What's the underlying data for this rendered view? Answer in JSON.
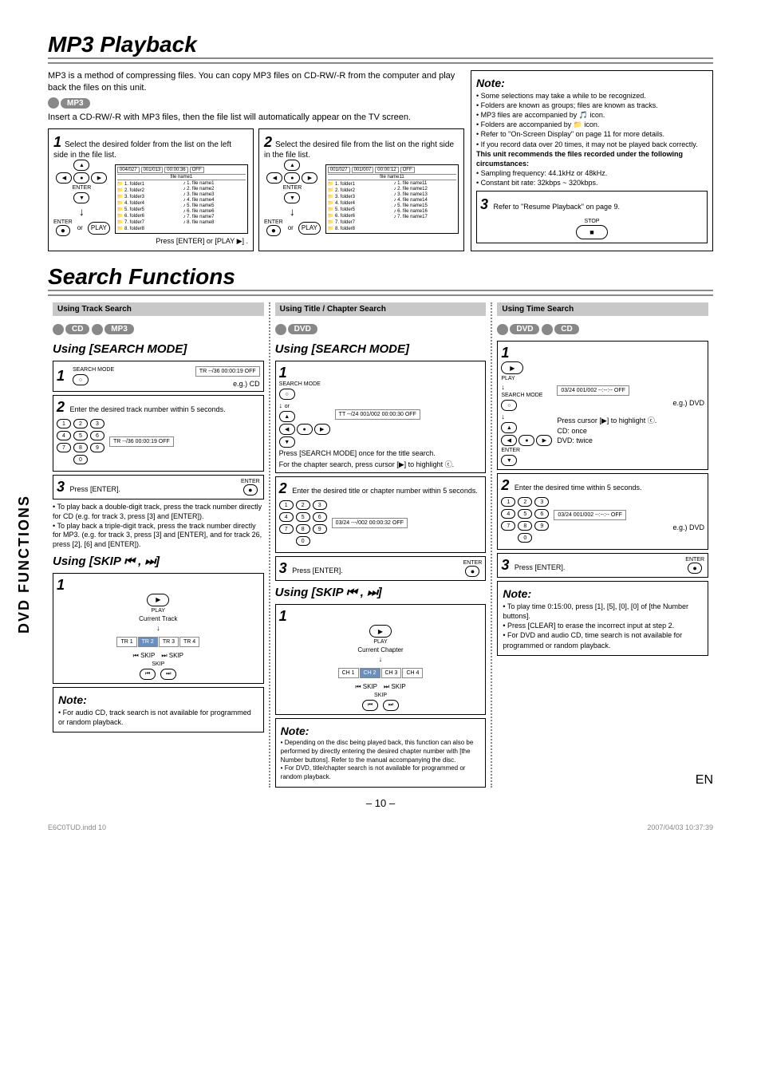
{
  "sideTab": "DVD FUNCTIONS",
  "title1": "MP3 Playback",
  "intro": "MP3 is a method of compressing files. You can copy MP3 files on CD-RW/-R from the computer and play back the files on this unit.",
  "badgeMp3": "MP3",
  "insertText": "Insert a CD-RW/-R with MP3 files, then the file list will automatically appear on the TV screen.",
  "step1": {
    "num": "1",
    "text": "Select the desired folder from the list on the left side in the file list.",
    "header": [
      "004/027",
      "001/013",
      "00:00:36",
      "OFF"
    ],
    "fileTitle": "file name1",
    "folders": [
      "1. folder1",
      "2. folder2",
      "3. folder3",
      "4. folder4",
      "5. folder5",
      "6. folder6",
      "7. folder7",
      "8. folder8"
    ],
    "files": [
      "1. file name1",
      "2. file name2",
      "3. file name3",
      "4. file name4",
      "5. file name5",
      "6. file name6",
      "7. file name7",
      "8. file name8"
    ],
    "enterLabel": "ENTER",
    "playLabel": "PLAY",
    "pressText": "Press [ENTER] or [PLAY ▶] ."
  },
  "step2": {
    "num": "2",
    "text": "Select the desired file from the list on the right side in the file list.",
    "header": [
      "001/027",
      "001/007",
      "00:00:12",
      "OFF"
    ],
    "fileTitle": "file name11",
    "folders": [
      "1. folder1",
      "2. folder2",
      "3. folder3",
      "4. folder4",
      "5. folder5",
      "6. folder6",
      "7. folder7",
      "8. folder8"
    ],
    "files": [
      "1. file name11",
      "2. file name12",
      "3. file name13",
      "4. file name14",
      "5. file name15",
      "6. file name16",
      "7. file name17"
    ],
    "enterLabel": "ENTER",
    "playLabel": "PLAY"
  },
  "noteMain": {
    "title": "Note:",
    "items": [
      "Some selections may take a while to be recognized.",
      "Folders are known as groups; files are known as tracks.",
      "MP3 files are accompanied by 🎵 icon.",
      "Folders are accompanied by 📁 icon.",
      "Refer to \"On-Screen Display\" on page 11 for more details.",
      "If you record data over 20 times, it may not be played back correctly."
    ],
    "boldLine": "This unit recommends the files recorded under the following circumstances:",
    "specs": [
      "Sampling frequency: 44.1kHz or 48kHz.",
      "Constant bit rate: 32kbps ~ 320kbps."
    ],
    "step3num": "3",
    "step3text": "Refer to \"Resume Playback\" on page 9.",
    "stopLabel": "STOP"
  },
  "title2": "Search Functions",
  "colA": {
    "header": "Using Track Search",
    "badges": [
      "CD",
      "MP3"
    ],
    "using": "Using [SEARCH MODE]",
    "s1num": "1",
    "searchMode": "SEARCH MODE",
    "display1": "TR  --/36  00:00:19  OFF",
    "eg": "e.g.) CD",
    "s2num": "2",
    "s2text": "Enter the desired track number within 5 seconds.",
    "display2": "TR  --/36  00:00:19  OFF",
    "s3num": "3",
    "s3text": "Press [ENTER].",
    "enterLabel": "ENTER",
    "bullet1": "To play back a double-digit track, press the track number directly for CD (e.g. for track 3, press [3] and [ENTER]).",
    "bullet2": "To play back a triple-digit track, press the track number directly for MP3. (e.g. for track 3, press [3] and [ENTER], and for track 26, press [2], [6] and [ENTER]).",
    "using2": "Using [SKIP ⏮ , ⏭]",
    "u2num": "1",
    "playLabel": "PLAY",
    "currentTrack": "Current Track",
    "tracks": [
      "TR 1",
      "TR 2",
      "TR 3",
      "TR 4"
    ],
    "skipL": "⏮ SKIP",
    "skipR": "⏭ SKIP",
    "skipLabel": "SKIP",
    "noteTitle": "Note:",
    "noteText": "For audio CD, track search is not available for programmed or random playback."
  },
  "colB": {
    "header": "Using Title / Chapter Search",
    "badges": [
      "DVD"
    ],
    "using": "Using [SEARCH MODE]",
    "s1num": "1",
    "searchMode": "SEARCH MODE",
    "display1": "TT --/24  001/002  00:00:30  OFF",
    "orLabel": "or",
    "pressText": "Press [SEARCH MODE] once for the title search.",
    "pressText2": "For the chapter search, press cursor [▶] to highlight ⓒ.",
    "s2num": "2",
    "s2text": "Enter the desired title or chapter number within 5 seconds.",
    "display2": "03/24  ---/002  00:00:32  OFF",
    "s3num": "3",
    "s3text": "Press [ENTER].",
    "enterLabel": "ENTER",
    "using2": "Using [SKIP ⏮ , ⏭]",
    "u2num": "1",
    "playLabel": "PLAY",
    "currentChapter": "Current Chapter",
    "chapters": [
      "CH 1",
      "CH 2",
      "CH 3",
      "CH 4"
    ],
    "skipL": "⏮ SKIP",
    "skipR": "⏭ SKIP",
    "skipLabel": "SKIP",
    "noteTitle": "Note:",
    "noteText1": "Depending on the disc being played back, this function can also be performed by directly entering the desired chapter number with [the Number buttons]. Refer to the manual accompanying the disc.",
    "noteText2": "For DVD, title/chapter search is not available for programmed or random playback."
  },
  "colC": {
    "header": "Using Time Search",
    "badges": [
      "DVD",
      "CD"
    ],
    "s1num": "1",
    "playLabel": "PLAY",
    "display1": "03/24  001/002  --:--:--  OFF",
    "searchMode": "SEARCH MODE",
    "eg": "e.g.) DVD",
    "pressText": "Press cursor [▶] to highlight ⓒ.",
    "cdOnce": "CD:  once",
    "dvdTwice": "DVD: twice",
    "enterLabel": "ENTER",
    "s2num": "2",
    "s2text": "Enter the desired time within 5 seconds.",
    "display2": "03/24  001/002  --:--:--  OFF",
    "eg2": "e.g.) DVD",
    "s3num": "3",
    "s3text": "Press [ENTER].",
    "noteTitle": "Note:",
    "noteItems": [
      "To play time 0:15:00, press [1], [5], [0], [0] of [the Number buttons].",
      "Press [CLEAR] to erase the incorrect input at step 2.",
      "For DVD and audio CD, time search is not available for programmed or random playback."
    ]
  },
  "pageNum": "– 10 –",
  "enLabel": "EN",
  "footer": {
    "left": "E6C0TUD.indd   10",
    "right": "2007/04/03   10:37:39"
  }
}
